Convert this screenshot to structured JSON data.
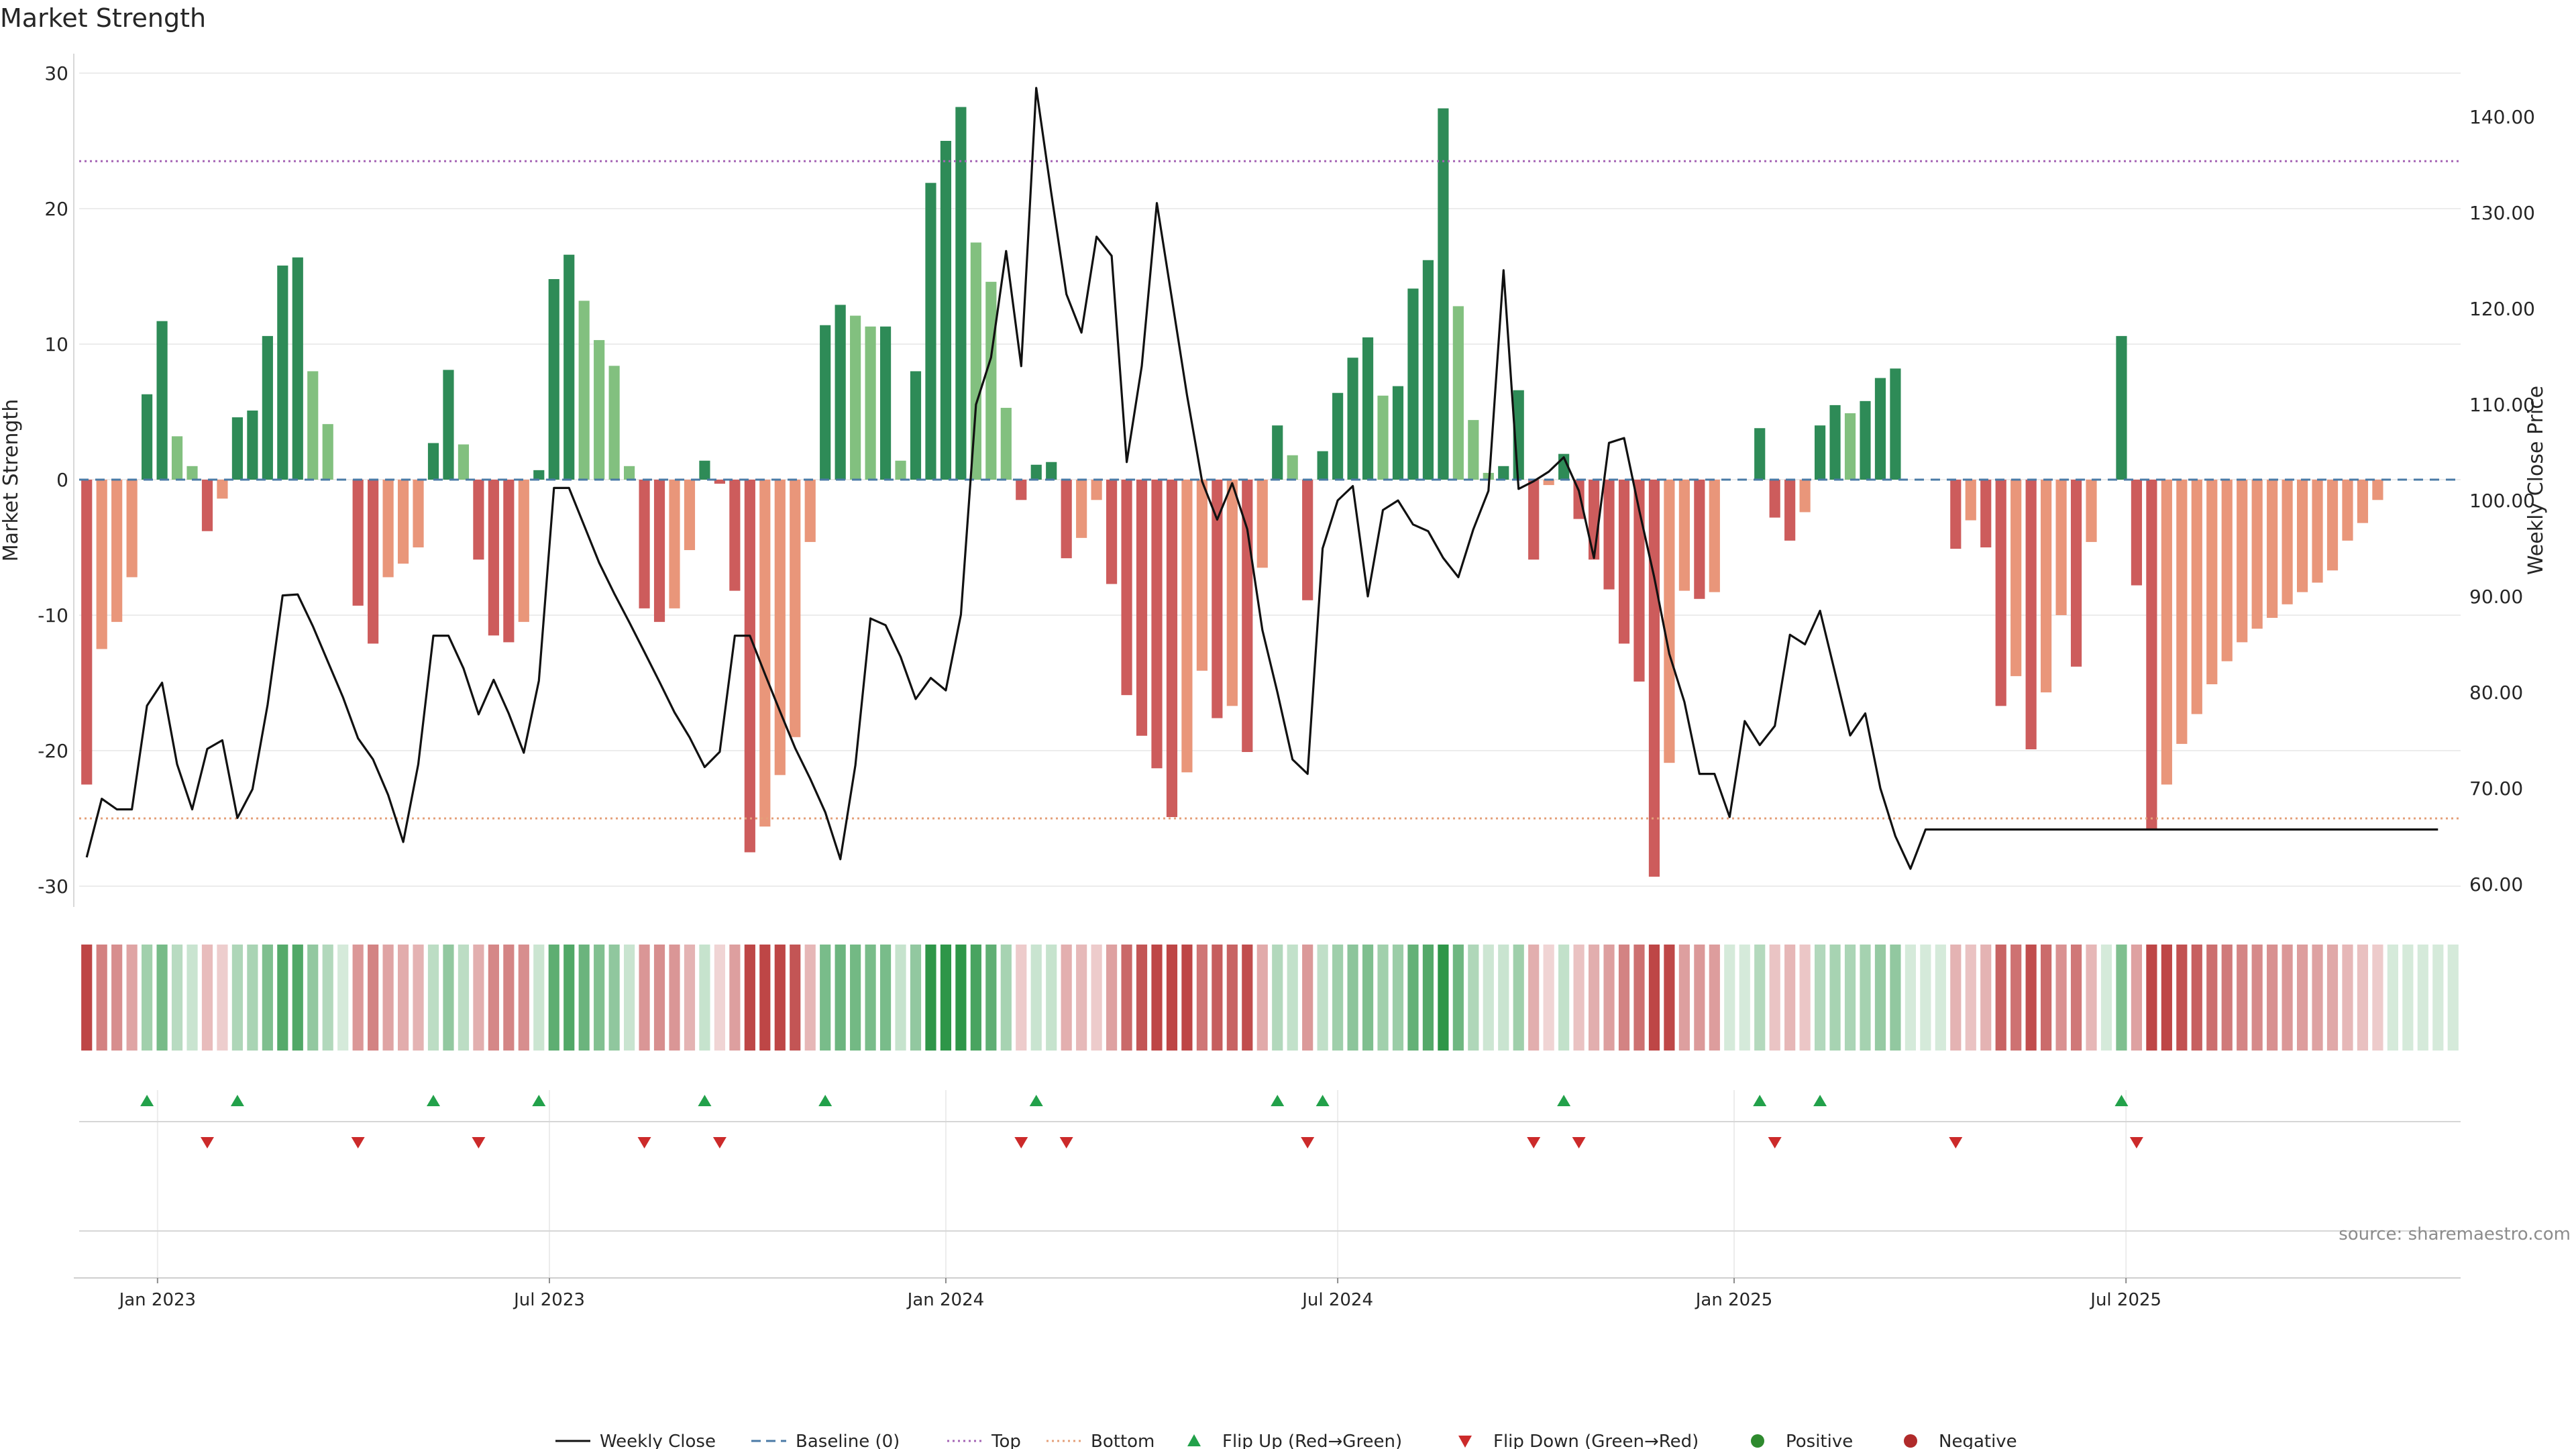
{
  "chart_data": {
    "type": "bar",
    "title": "Market Strength",
    "ylabel_left": "Market Strength",
    "ylabel_right": "Weekly Close Price",
    "source": "source: sharemaestro.com",
    "left_axis": {
      "ylim": [
        -32,
        30
      ],
      "ticks": [
        30,
        20,
        10,
        0,
        -10,
        -20,
        -30
      ]
    },
    "right_axis": {
      "ylim": [
        59,
        144
      ],
      "ticks": [
        "60.00",
        "70.00",
        "80.00",
        "90.00",
        "100.00",
        "110.00",
        "120.00",
        "130.00",
        "140.00"
      ]
    },
    "x_axis": {
      "weeks": 158,
      "first_week": "2022-11-27",
      "ticks": [
        {
          "label": "Jan 2023",
          "week": 4.7
        },
        {
          "label": "Jul 2023",
          "week": 30.7
        },
        {
          "label": "Jan 2024",
          "week": 57
        },
        {
          "label": "Jul 2024",
          "week": 83
        },
        {
          "label": "Jan 2025",
          "week": 109.3
        },
        {
          "label": "Jul 2025",
          "week": 135.3
        }
      ]
    },
    "reference_lines": {
      "baseline": 0,
      "top": 23.5,
      "bottom": -25
    },
    "strength": [
      -22.5,
      -12.5,
      -10.5,
      -7.2,
      6.3,
      11.7,
      3.2,
      1,
      -3.8,
      -1.4,
      4.6,
      5.1,
      10.6,
      15.8,
      16.4,
      8,
      4.1,
      0,
      -9.3,
      -12.1,
      -7.2,
      -6.2,
      -5,
      2.7,
      8.1,
      2.6,
      -5.9,
      -11.5,
      -12,
      -10.5,
      0.7,
      14.8,
      16.6,
      13.2,
      10.3,
      8.4,
      1,
      -9.5,
      -10.5,
      -9.5,
      -5.2,
      1.4,
      -0.3,
      -8.2,
      -27.5,
      -25.6,
      -21.8,
      -19,
      -4.6,
      11.4,
      12.9,
      12.1,
      11.3,
      11.3,
      1.4,
      8,
      21.9,
      25,
      27.5,
      17.5,
      14.6,
      5.3,
      -1.5,
      1.1,
      1.3,
      -5.8,
      -4.3,
      -1.5,
      -7.7,
      -15.9,
      -18.9,
      -21.3,
      -24.9,
      -21.6,
      -14.1,
      -17.6,
      -16.7,
      -20.1,
      -6.5,
      4,
      1.8,
      -8.9,
      2.1,
      6.4,
      9,
      10.5,
      6.2,
      6.9,
      14.1,
      16.2,
      27.4,
      12.8,
      4.4,
      0.5,
      1,
      6.6,
      -5.9,
      -0.4,
      1.9,
      -2.9,
      -5.9,
      -8.1,
      -12.1,
      -14.9,
      -29.3,
      -20.9,
      -8.2,
      -8.8,
      -8.3,
      0,
      0,
      3.8,
      -2.8,
      -4.5,
      -2.4,
      4,
      5.5,
      4.9,
      5.8,
      7.5,
      8.2,
      0,
      0,
      0,
      -5.1,
      -3,
      -5,
      -16.7,
      -14.5,
      -19.9,
      -15.7,
      -10,
      -13.8,
      -4.6,
      0,
      10.6,
      -7.8,
      -25.8,
      -22.5,
      -19.5,
      -17.3,
      -15.1,
      -13.4,
      -12,
      -11,
      -10.2,
      -9.2,
      -8.3,
      -7.6,
      -6.7,
      -4.5,
      -3.2,
      -1.5,
      0,
      0,
      0,
      0,
      0
    ],
    "series": [
      {
        "name": "Weekly Close",
        "color": "#111111",
        "anchors": [
          [
            0,
            62.8
          ],
          [
            1,
            68.9
          ],
          [
            2,
            67.8
          ],
          [
            3,
            67.8
          ],
          [
            4,
            78.6
          ],
          [
            5,
            81
          ],
          [
            6,
            72.5
          ],
          [
            7,
            67.8
          ],
          [
            8,
            74.1
          ],
          [
            9,
            75
          ],
          [
            10,
            66.9
          ],
          [
            11,
            69.9
          ],
          [
            12,
            78.7
          ],
          [
            13,
            90.1
          ],
          [
            14,
            90.2
          ],
          [
            15,
            86.9
          ],
          [
            16,
            83.2
          ],
          [
            17,
            79.5
          ],
          [
            18,
            75.2
          ],
          [
            19,
            73
          ],
          [
            20,
            69.3
          ],
          [
            21,
            64.4
          ],
          [
            22,
            72.5
          ],
          [
            23,
            85.9
          ],
          [
            24,
            85.9
          ],
          [
            25,
            82.5
          ],
          [
            26,
            77.7
          ],
          [
            27,
            81.3
          ],
          [
            28,
            77.8
          ],
          [
            29,
            73.7
          ],
          [
            30,
            81.2
          ],
          [
            31,
            101.3
          ],
          [
            32,
            101.3
          ],
          [
            33,
            97.4
          ],
          [
            34,
            93.5
          ],
          [
            35,
            90.3
          ],
          [
            36,
            87.3
          ],
          [
            37,
            84.2
          ],
          [
            38,
            81.1
          ],
          [
            39,
            77.9
          ],
          [
            40,
            75.3
          ],
          [
            41,
            72.2
          ],
          [
            42,
            73.8
          ],
          [
            43,
            85.9
          ],
          [
            44,
            85.9
          ],
          [
            45,
            81.9
          ],
          [
            46,
            78
          ],
          [
            47,
            74.2
          ],
          [
            48,
            71
          ],
          [
            49,
            67.5
          ],
          [
            50,
            62.6
          ],
          [
            51,
            72.4
          ],
          [
            52,
            87.7
          ],
          [
            53,
            87
          ],
          [
            54,
            83.7
          ],
          [
            55,
            79.3
          ],
          [
            56,
            81.5
          ],
          [
            57,
            80.2
          ],
          [
            58,
            88.1
          ],
          [
            59,
            110
          ],
          [
            60,
            114.9
          ],
          [
            61,
            126
          ],
          [
            62,
            114
          ],
          [
            63,
            143
          ],
          [
            64,
            132
          ],
          [
            65,
            121.5
          ],
          [
            66,
            117.5
          ],
          [
            67,
            127.5
          ],
          [
            68,
            125.5
          ],
          [
            69,
            104
          ],
          [
            70,
            114
          ],
          [
            71,
            131
          ],
          [
            72,
            121
          ],
          [
            73,
            111
          ],
          [
            74,
            102
          ],
          [
            75,
            98
          ],
          [
            76,
            101.8
          ],
          [
            77,
            97
          ],
          [
            78,
            86.5
          ],
          [
            79,
            80
          ],
          [
            80,
            73
          ],
          [
            81,
            71.5
          ],
          [
            82,
            95
          ],
          [
            83,
            100
          ],
          [
            84,
            101.5
          ],
          [
            85,
            90
          ],
          [
            86,
            99
          ],
          [
            87,
            100
          ],
          [
            88,
            97.5
          ],
          [
            89,
            96.8
          ],
          [
            90,
            94
          ],
          [
            91,
            92
          ],
          [
            92,
            97
          ],
          [
            93,
            101
          ],
          [
            94,
            124
          ],
          [
            95,
            101.2
          ],
          [
            96,
            102
          ],
          [
            97,
            103
          ],
          [
            98,
            104.5
          ],
          [
            99,
            101
          ],
          [
            100,
            94
          ],
          [
            101,
            106
          ],
          [
            102,
            106.5
          ],
          [
            103,
            99
          ],
          [
            104,
            92
          ],
          [
            105,
            84
          ],
          [
            106,
            79
          ],
          [
            107,
            71.5
          ],
          [
            108,
            71.5
          ],
          [
            109,
            67
          ],
          [
            110,
            77
          ],
          [
            111,
            74.5
          ],
          [
            112,
            76.5
          ],
          [
            113,
            86
          ],
          [
            114,
            85
          ],
          [
            115,
            88.5
          ],
          [
            116,
            82
          ],
          [
            117,
            75.5
          ],
          [
            118,
            77.8
          ],
          [
            119,
            70
          ],
          [
            120,
            65
          ],
          [
            121,
            61.6
          ],
          [
            122,
            65.7
          ],
          [
            156,
            65.7
          ]
        ]
      }
    ],
    "legend": {
      "position": "bottom-center",
      "items": [
        {
          "label": "Weekly Close",
          "kind": "line",
          "color": "#111111"
        },
        {
          "label": "Baseline (0)",
          "kind": "dashed",
          "color": "#4a7aa6"
        },
        {
          "label": "Top",
          "kind": "dotted",
          "color": "#a565b5"
        },
        {
          "label": "Bottom",
          "kind": "dotted",
          "color": "#e4a07a"
        },
        {
          "label": "Flip Up (Red→Green)",
          "kind": "tri-up",
          "color": "#22a14a"
        },
        {
          "label": "Flip Down (Green→Red)",
          "kind": "tri-down",
          "color": "#cc2a2a"
        },
        {
          "label": "Positive",
          "kind": "dot",
          "color": "#2e8a2e"
        },
        {
          "label": "Negative",
          "kind": "dot",
          "color": "#b02a2a"
        }
      ]
    },
    "colors": {
      "strong_green": "#2e8b57",
      "light_green": "#82c07f",
      "strong_red": "#cd5c5c",
      "light_red": "#e9967a",
      "baseline": "#4a7aa6",
      "top": "#a565b5",
      "bottom": "#e4a07a",
      "price": "#111111"
    }
  }
}
